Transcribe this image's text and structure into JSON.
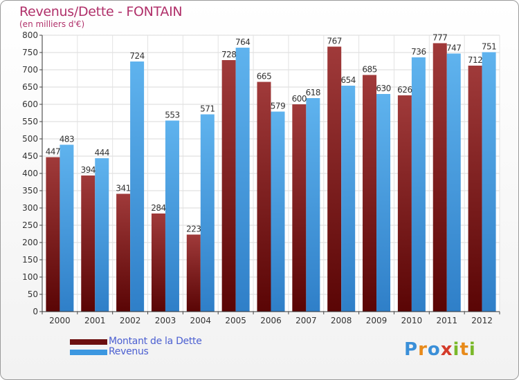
{
  "header": {
    "title": "Revenus/Dette - FONTAIN",
    "subtitle": "(en milliers d'€)"
  },
  "chart_data": {
    "type": "bar",
    "categories": [
      "2000",
      "2001",
      "2002",
      "2003",
      "2004",
      "2005",
      "2006",
      "2007",
      "2008",
      "2009",
      "2010",
      "2011",
      "2012"
    ],
    "series": [
      {
        "name": "Montant de la Dette",
        "values": [
          447,
          394,
          341,
          284,
          223,
          728,
          665,
          600,
          767,
          685,
          626,
          777,
          712
        ],
        "color": "#7a1a1a"
      },
      {
        "name": "Revenus",
        "values": [
          483,
          444,
          724,
          553,
          571,
          764,
          579,
          618,
          654,
          630,
          736,
          747,
          751
        ],
        "color": "#4aa3e6"
      }
    ],
    "ylim": [
      0,
      800
    ],
    "yticks": [
      0,
      50,
      100,
      150,
      200,
      250,
      300,
      350,
      400,
      450,
      500,
      550,
      600,
      650,
      700,
      750,
      800
    ],
    "grid": true,
    "legend_position": "bottom-left"
  },
  "legend": {
    "items": [
      {
        "label": "Montant de la Dette",
        "color": "#6b0f0f"
      },
      {
        "label": "Revenus",
        "color": "#3c97e0"
      }
    ]
  },
  "logo": {
    "letters": [
      "P",
      "r",
      "o",
      "x",
      "i",
      "t",
      "i"
    ],
    "colors": [
      "#3a8fd8",
      "#e88a1a",
      "#3a8fd8",
      "#d43b2a",
      "#7ab82a",
      "#e88a1a",
      "#7ab82a"
    ]
  }
}
